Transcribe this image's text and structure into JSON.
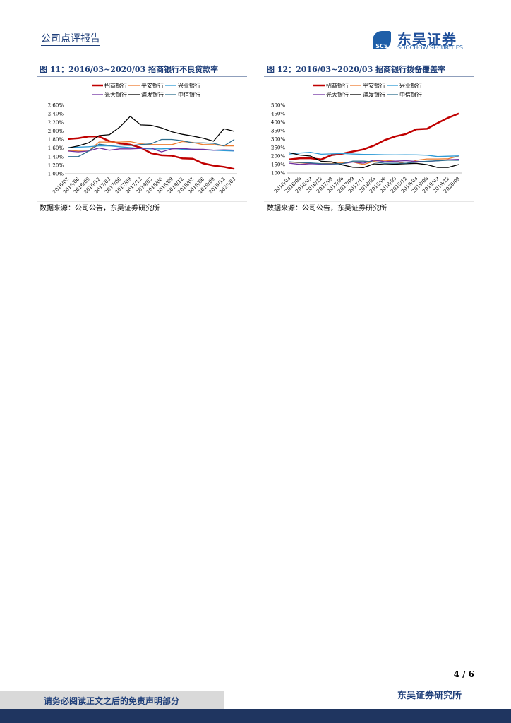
{
  "header": {
    "title": "公司点评报告",
    "logo_mark": "SCS",
    "logo_cn": "东吴证券",
    "logo_en": "SOOCHOW SECURITIES"
  },
  "chart_data": [
    {
      "type": "line",
      "title": "图 11：2016/03~2020/03 招商银行不良贷款率",
      "source": "数据来源：公司公告，东吴证券研究所",
      "categories": [
        "2016/03",
        "2016/06",
        "2016/09",
        "2016/12",
        "2017/03",
        "2017/06",
        "2017/09",
        "2017/12",
        "2018/03",
        "2018/06",
        "2018/09",
        "2018/12",
        "2019/03",
        "2019/06",
        "2019/09",
        "2019/12",
        "2020/03"
      ],
      "ylim": [
        1.0,
        2.6
      ],
      "yticks": [
        {
          "value": 1.0,
          "label": "1.00%"
        },
        {
          "value": 1.2,
          "label": "1.20%"
        },
        {
          "value": 1.4,
          "label": "1.40%"
        },
        {
          "value": 1.6,
          "label": "1.60%"
        },
        {
          "value": 1.8,
          "label": "1.80%"
        },
        {
          "value": 2.0,
          "label": "2.00%"
        },
        {
          "value": 2.2,
          "label": "2.20%"
        },
        {
          "value": 2.4,
          "label": "2.40%"
        },
        {
          "value": 2.6,
          "label": "2.60%"
        }
      ],
      "series": [
        {
          "name": "招商银行",
          "color": "#c00000",
          "values": [
            1.81,
            1.83,
            1.87,
            1.87,
            1.76,
            1.71,
            1.68,
            1.61,
            1.48,
            1.43,
            1.42,
            1.36,
            1.35,
            1.24,
            1.19,
            1.16,
            1.11
          ]
        },
        {
          "name": "平安银行",
          "color": "#ed7d31",
          "values": [
            1.55,
            1.53,
            1.53,
            1.74,
            1.74,
            1.74,
            1.75,
            1.7,
            1.68,
            1.68,
            1.68,
            1.75,
            1.73,
            1.68,
            1.68,
            1.65,
            1.65
          ]
        },
        {
          "name": "兴业银行",
          "color": "#2e9bd6",
          "values": [
            1.61,
            1.62,
            1.63,
            1.65,
            1.65,
            1.63,
            1.61,
            1.59,
            1.58,
            1.58,
            1.59,
            1.57,
            1.57,
            1.56,
            1.55,
            1.54,
            1.53
          ]
        },
        {
          "name": "光大银行",
          "color": "#7030a0",
          "values": [
            1.53,
            1.51,
            1.53,
            1.6,
            1.55,
            1.58,
            1.58,
            1.59,
            1.6,
            1.51,
            1.58,
            1.59,
            1.57,
            1.57,
            1.55,
            1.56,
            1.55
          ]
        },
        {
          "name": "浦发银行",
          "color": "#000000",
          "values": [
            1.6,
            1.65,
            1.72,
            1.89,
            1.91,
            2.09,
            2.34,
            2.14,
            2.13,
            2.07,
            1.98,
            1.92,
            1.88,
            1.83,
            1.76,
            2.05,
            1.99
          ]
        },
        {
          "name": "中信银行",
          "color": "#2f6f8f",
          "values": [
            1.4,
            1.4,
            1.53,
            1.69,
            1.66,
            1.67,
            1.66,
            1.68,
            1.7,
            1.8,
            1.8,
            1.77,
            1.72,
            1.72,
            1.71,
            1.65,
            1.8
          ]
        }
      ]
    },
    {
      "type": "line",
      "title": "图 12：2016/03~2020/03 招商银行拨备覆盖率",
      "source": "数据来源：公司公告，东吴证券研究所",
      "categories": [
        "2016/03",
        "2016/06",
        "2016/09",
        "2016/12",
        "2017/03",
        "2017/06",
        "2017/09",
        "2017/12",
        "2018/03",
        "2018/06",
        "2018/09",
        "2018/12",
        "2019/03",
        "2019/06",
        "2019/09",
        "2019/12",
        "2020/03"
      ],
      "ylim": [
        100,
        500
      ],
      "yticks": [
        {
          "value": 100,
          "label": "100%"
        },
        {
          "value": 150,
          "label": "150%"
        },
        {
          "value": 200,
          "label": "200%"
        },
        {
          "value": 250,
          "label": "250%"
        },
        {
          "value": 300,
          "label": "300%"
        },
        {
          "value": 350,
          "label": "350%"
        },
        {
          "value": 400,
          "label": "400%"
        },
        {
          "value": 450,
          "label": "450%"
        },
        {
          "value": 500,
          "label": "500%"
        }
      ],
      "series": [
        {
          "name": "招商银行",
          "color": "#c00000",
          "values": [
            180,
            187,
            187,
            180,
            206,
            214,
            227,
            239,
            262,
            294,
            316,
            330,
            358,
            361,
            395,
            426,
            451
          ]
        },
        {
          "name": "平安银行",
          "color": "#ed7d31",
          "values": [
            165,
            160,
            158,
            156,
            157,
            160,
            165,
            150,
            170,
            175,
            170,
            155,
            175,
            183,
            183,
            184,
            200
          ]
        },
        {
          "name": "兴业银行",
          "color": "#2e9bd6",
          "values": [
            212,
            218,
            222,
            211,
            213,
            215,
            212,
            210,
            209,
            208,
            207,
            208,
            207,
            205,
            197,
            199,
            201
          ]
        },
        {
          "name": "光大银行",
          "color": "#7030a0",
          "values": [
            158,
            151,
            155,
            152,
            153,
            155,
            165,
            158,
            176,
            167,
            170,
            173,
            168,
            168,
            172,
            178,
            181
          ]
        },
        {
          "name": "浦发银行",
          "color": "#000000",
          "values": [
            220,
            206,
            200,
            169,
            166,
            148,
            134,
            132,
            154,
            150,
            152,
            155,
            157,
            149,
            133,
            133,
            150
          ]
        },
        {
          "name": "中信银行",
          "color": "#2f6f8f",
          "values": [
            166,
            162,
            160,
            155,
            154,
            155,
            170,
            170,
            165,
            157,
            158,
            158,
            165,
            169,
            172,
            176,
            175
          ]
        }
      ]
    }
  ],
  "page_number": "4 / 6",
  "footer": {
    "disclaimer": "请务必阅读正文之后的免责声明部分",
    "institute": "东吴证券研究所"
  }
}
